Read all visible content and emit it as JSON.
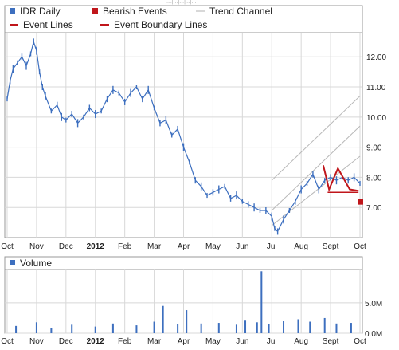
{
  "top_strip_text": "....|...|...|...|...",
  "chart_data": [
    {
      "type": "line",
      "title": "",
      "legend": {
        "placement": "top",
        "entries": [
          {
            "label": "IDR Daily",
            "marker": "square",
            "color": "#3d6fbf"
          },
          {
            "label": "Bearish Events",
            "marker": "square",
            "color": "#c0161b"
          },
          {
            "label": "Trend Channel",
            "marker": "line",
            "color": "#b0b0b0"
          },
          {
            "label": "Event Lines",
            "marker": "line",
            "color": "#c0161b"
          },
          {
            "label": "Event Boundary Lines",
            "marker": "line",
            "color": "#c0161b"
          }
        ]
      },
      "x_ticks": [
        {
          "x": 0,
          "label": "Oct",
          "bold": false
        },
        {
          "x": 1,
          "label": "Nov",
          "bold": false
        },
        {
          "x": 2,
          "label": "Dec",
          "bold": false
        },
        {
          "x": 3,
          "label": "2012",
          "bold": true
        },
        {
          "x": 4,
          "label": "Feb",
          "bold": false
        },
        {
          "x": 5,
          "label": "Mar",
          "bold": false
        },
        {
          "x": 6,
          "label": "Apr",
          "bold": false
        },
        {
          "x": 7,
          "label": "May",
          "bold": false
        },
        {
          "x": 8,
          "label": "Jun",
          "bold": false
        },
        {
          "x": 9,
          "label": "Jul",
          "bold": false
        },
        {
          "x": 10,
          "label": "Aug",
          "bold": false
        },
        {
          "x": 11,
          "label": "Sept",
          "bold": false
        },
        {
          "x": 12,
          "label": "Oct",
          "bold": false
        }
      ],
      "x_range": [
        0,
        12
      ],
      "y_ticks": [
        7,
        8,
        9,
        10,
        11,
        12
      ],
      "y_tick_labels": [
        "7.00",
        "8.00",
        "9.00",
        "10.00",
        "11.00",
        "12.00"
      ],
      "ylim": [
        6.0,
        12.8
      ],
      "grid": true,
      "colors": {
        "price": "#3d6fbf",
        "event": "#c0161b",
        "channel": "#b8b8b8",
        "grid": "#d8d8d8"
      },
      "series": [
        {
          "name": "IDR Daily",
          "x": [
            0,
            0.1,
            0.2,
            0.35,
            0.5,
            0.65,
            0.8,
            0.9,
            1.0,
            1.1,
            1.2,
            1.3,
            1.5,
            1.7,
            1.85,
            2.0,
            2.2,
            2.4,
            2.6,
            2.8,
            3.0,
            3.2,
            3.4,
            3.6,
            3.8,
            4.0,
            4.2,
            4.4,
            4.6,
            4.8,
            5.0,
            5.2,
            5.4,
            5.6,
            5.8,
            6.0,
            6.2,
            6.4,
            6.6,
            6.8,
            7.0,
            7.2,
            7.4,
            7.6,
            7.8,
            8.0,
            8.2,
            8.4,
            8.6,
            8.8,
            9.0,
            9.1,
            9.2,
            9.4,
            9.6,
            9.8,
            10.0,
            10.2,
            10.4,
            10.6,
            10.8,
            11.0,
            11.2,
            11.4,
            11.6,
            11.8,
            12.0
          ],
          "values": [
            10.6,
            11.2,
            11.6,
            11.8,
            12.0,
            11.7,
            12.1,
            12.5,
            12.2,
            11.5,
            11.0,
            10.7,
            10.2,
            10.4,
            10.0,
            9.9,
            10.1,
            9.8,
            10.0,
            10.3,
            10.1,
            10.2,
            10.6,
            10.9,
            10.8,
            10.5,
            10.8,
            11.0,
            10.6,
            10.9,
            10.3,
            9.8,
            9.9,
            9.4,
            9.6,
            9.0,
            8.5,
            7.9,
            7.7,
            7.4,
            7.5,
            7.6,
            7.7,
            7.3,
            7.4,
            7.2,
            7.1,
            7.0,
            6.9,
            6.9,
            6.7,
            6.3,
            6.2,
            6.6,
            6.9,
            7.2,
            7.6,
            7.8,
            8.1,
            7.6,
            7.9,
            8.0,
            7.9,
            8.0,
            7.9,
            8.0,
            7.8
          ]
        }
      ],
      "trend_channel": [
        {
          "x": [
            9.0,
            12.0
          ],
          "y": [
            6.4,
            8.7
          ]
        },
        {
          "x": [
            9.0,
            12.0
          ],
          "y": [
            6.9,
            9.7
          ]
        },
        {
          "x": [
            9.0,
            12.0
          ],
          "y": [
            7.9,
            10.7
          ]
        }
      ],
      "event_lines": {
        "x": [
          10.75,
          10.95,
          11.25,
          11.65,
          11.95
        ],
        "y": [
          8.4,
          7.6,
          8.3,
          7.6,
          7.55
        ]
      },
      "event_boundary": {
        "x": [
          10.9,
          11.95
        ],
        "y": 7.5
      },
      "bearish_events": [
        {
          "x": 12.0,
          "y": 7.2
        }
      ]
    },
    {
      "type": "bar",
      "title": "",
      "legend": {
        "placement": "top-left",
        "entries": [
          {
            "label": "Volume",
            "marker": "square",
            "color": "#3d6fbf"
          }
        ]
      },
      "x_ticks": [
        {
          "x": 0,
          "label": "Oct",
          "bold": false
        },
        {
          "x": 1,
          "label": "Nov",
          "bold": false
        },
        {
          "x": 2,
          "label": "Dec",
          "bold": false
        },
        {
          "x": 3,
          "label": "2012",
          "bold": true
        },
        {
          "x": 4,
          "label": "Feb",
          "bold": false
        },
        {
          "x": 5,
          "label": "Mar",
          "bold": false
        },
        {
          "x": 6,
          "label": "Apr",
          "bold": false
        },
        {
          "x": 7,
          "label": "May",
          "bold": false
        },
        {
          "x": 8,
          "label": "Jun",
          "bold": false
        },
        {
          "x": 9,
          "label": "Jul",
          "bold": false
        },
        {
          "x": 10,
          "label": "Aug",
          "bold": false
        },
        {
          "x": 11,
          "label": "Sept",
          "bold": false
        },
        {
          "x": 12,
          "label": "Oct",
          "bold": false
        }
      ],
      "x_range": [
        0,
        12
      ],
      "y_ticks": [
        0,
        5000000
      ],
      "y_tick_labels": [
        "0.0M",
        "5.0M"
      ],
      "ylim": [
        0,
        10500000
      ],
      "grid": true,
      "colors": {
        "bar": "#3d6fbf"
      },
      "series": [
        {
          "name": "Volume",
          "x": [
            0.3,
            1.0,
            1.5,
            2.2,
            3.0,
            3.6,
            4.4,
            5.0,
            5.3,
            5.8,
            6.1,
            6.6,
            7.2,
            7.8,
            8.1,
            8.5,
            8.65,
            8.9,
            9.4,
            9.9,
            10.3,
            10.8,
            11.2,
            11.7
          ],
          "values": [
            1200000,
            1800000,
            900000,
            1400000,
            1100000,
            1600000,
            1300000,
            1900000,
            4500000,
            1500000,
            3800000,
            1600000,
            1700000,
            1400000,
            2200000,
            1800000,
            10200000,
            1500000,
            2000000,
            2300000,
            1900000,
            2500000,
            1600000,
            1700000
          ]
        }
      ]
    }
  ]
}
